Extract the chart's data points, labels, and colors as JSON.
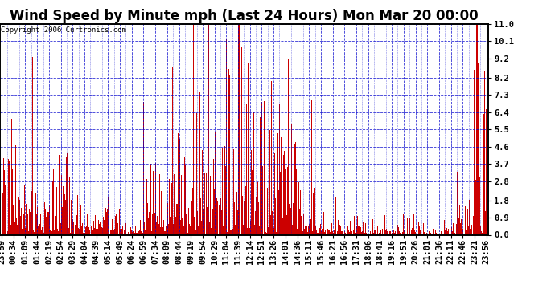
{
  "title": "Wind Speed by Minute mph (Last 24 Hours) Mon Mar 20 00:00",
  "copyright": "Copyright 2006 Curtronics.com",
  "ylabel_values": [
    0.0,
    0.9,
    1.8,
    2.8,
    3.7,
    4.6,
    5.5,
    6.4,
    7.3,
    8.2,
    9.2,
    10.1,
    11.0
  ],
  "ylim": [
    0.0,
    11.0
  ],
  "bg_color": "#ffffff",
  "bar_color": "#cc0000",
  "grid_color": "#0000cc",
  "title_fontsize": 12,
  "copyright_fontsize": 6.5,
  "tick_label_fontsize": 7.5,
  "x_tick_labels": [
    "23:59",
    "00:34",
    "01:09",
    "01:44",
    "02:19",
    "02:54",
    "03:29",
    "04:04",
    "04:39",
    "05:14",
    "05:49",
    "06:24",
    "06:59",
    "07:34",
    "08:09",
    "08:44",
    "09:19",
    "09:54",
    "10:29",
    "11:04",
    "11:39",
    "12:14",
    "12:51",
    "13:26",
    "14:01",
    "14:36",
    "15:11",
    "15:46",
    "16:21",
    "16:56",
    "17:31",
    "18:06",
    "18:41",
    "19:16",
    "19:51",
    "20:26",
    "21:01",
    "21:36",
    "22:11",
    "22:46",
    "23:21",
    "23:56"
  ],
  "num_points": 1440
}
